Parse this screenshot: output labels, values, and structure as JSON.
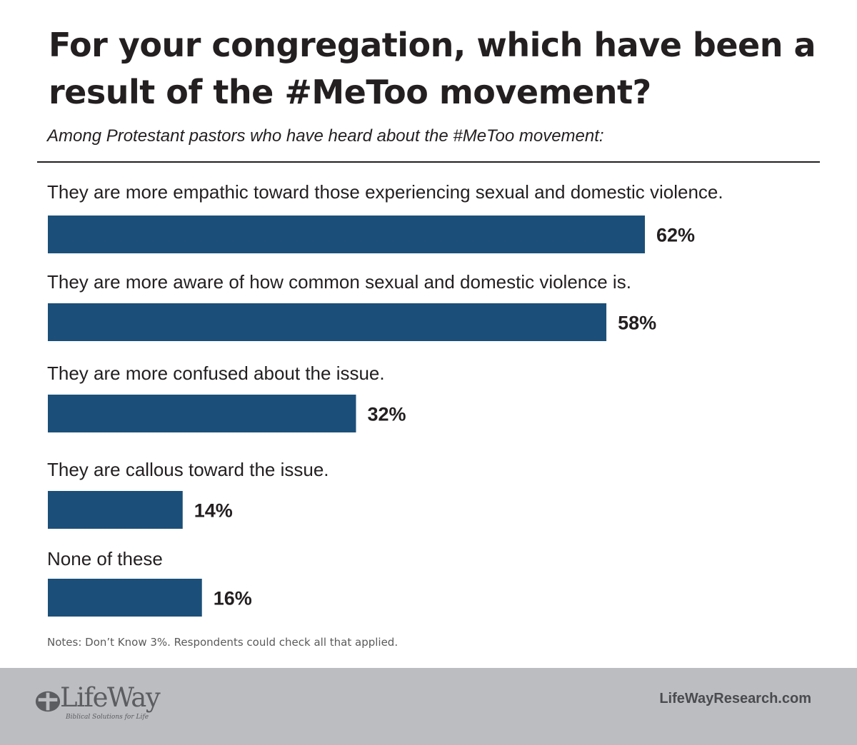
{
  "chart_data": {
    "type": "bar",
    "orientation": "horizontal",
    "title": "For your congregation, which have been a result of the #MeToo movement?",
    "subtitle": "Among Protestant pastors who have heard about the #MeToo movement:",
    "categories": [
      "They are more empathic toward those experiencing sexual and domestic violence.",
      "They are more aware of how common sexual and domestic violence is.",
      "They are more confused about the issue.",
      "They are callous toward the issue.",
      "None of these"
    ],
    "values": [
      62,
      58,
      32,
      14,
      16
    ],
    "value_labels": [
      "62%",
      "58%",
      "32%",
      "14%",
      "16%"
    ],
    "unit": "%",
    "bar_color": "#1b4f79",
    "grid": false,
    "axes_visible": false,
    "xlim": [
      0,
      100
    ],
    "notes": "Notes: Don’t Know 3%.  Respondents could check all that applied."
  },
  "footer": {
    "logo_text": "LifeWay",
    "logo_tagline": "Biblical Solutions for Life",
    "logo_icon": "cross-icon",
    "site": "LifeWayResearch.com",
    "background_color": "#bcbdc0"
  }
}
